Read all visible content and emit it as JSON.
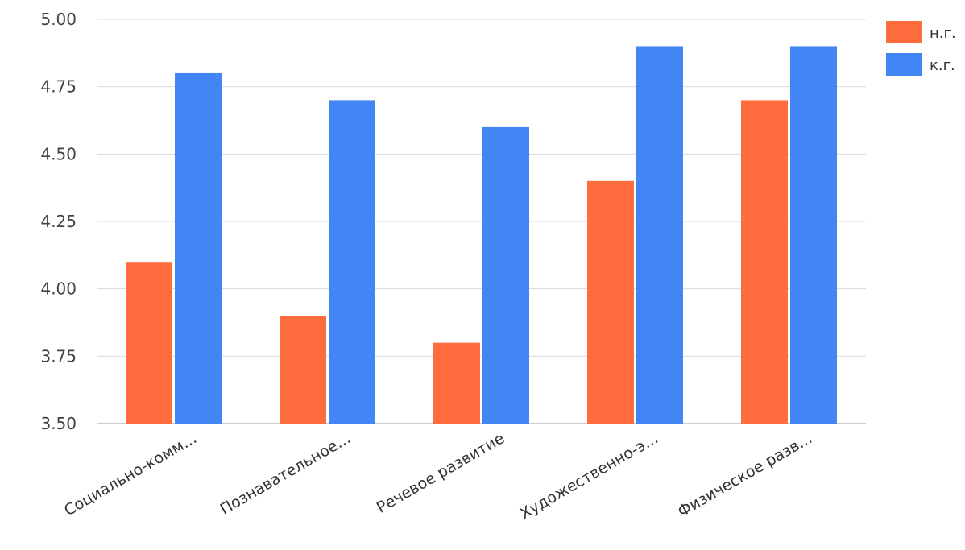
{
  "chart_data": {
    "type": "bar",
    "categories": [
      "Социально-комм...",
      "Познавательное...",
      "Речевое развитие",
      "Художественно-э...",
      "Физическое разв..."
    ],
    "series": [
      {
        "name": "н.г.",
        "color": "#ff6d3f",
        "values": [
          4.1,
          3.9,
          3.8,
          4.4,
          4.7
        ]
      },
      {
        "name": "к.г.",
        "color": "#4285f4",
        "values": [
          4.8,
          4.7,
          4.6,
          4.9,
          4.9
        ]
      }
    ],
    "ylim": [
      3.5,
      5.0
    ],
    "yticks": [
      "3.50",
      "3.75",
      "4.00",
      "4.25",
      "4.50",
      "4.75",
      "5.00"
    ],
    "ytick_values": [
      3.5,
      3.75,
      4.0,
      4.25,
      4.5,
      4.75,
      5.0
    ],
    "grid": true,
    "legend_position": "top-right",
    "title": "",
    "xlabel": "",
    "ylabel": ""
  }
}
